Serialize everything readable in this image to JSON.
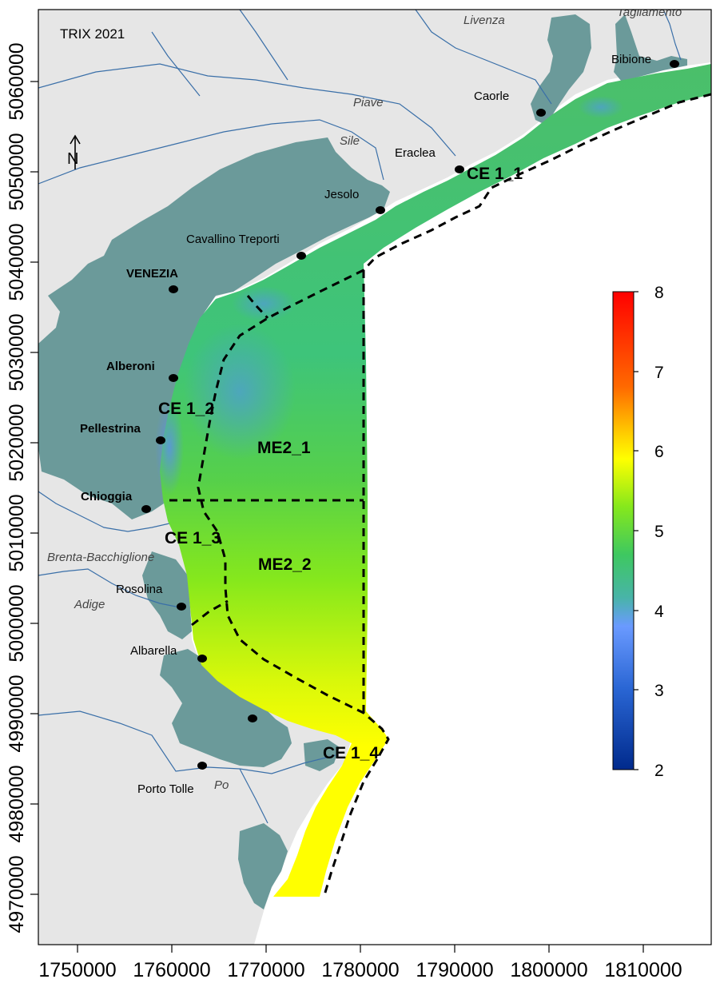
{
  "title": "TRIX 2021",
  "north_label": "N",
  "x_ticks": [
    "1750000",
    "1760000",
    "1770000",
    "1780000",
    "1790000",
    "1800000",
    "1810000"
  ],
  "y_ticks": [
    "5060000",
    "5050000",
    "5040000",
    "5030000",
    "5020000",
    "5010000",
    "5000000",
    "4990000",
    "4980000",
    "4970000"
  ],
  "colorbar": {
    "min": 2,
    "max": 8,
    "ticks": [
      "8",
      "7",
      "6",
      "5",
      "4",
      "3",
      "2"
    ],
    "colors": [
      "#ff0000",
      "#ff6a00",
      "#ffff00",
      "#7fff00",
      "#3ec86e",
      "#5a9cff",
      "#002a8c"
    ]
  },
  "places": {
    "bibione": "Bibione",
    "caorle": "Caorle",
    "eraclea": "Eraclea",
    "jesolo": "Jesolo",
    "cavallino": "Cavallino Treporti",
    "venezia": "VENEZIA",
    "alberoni": "Alberoni",
    "pellestrina": "Pellestrina",
    "chioggia": "Chioggia",
    "rosolina": "Rosolina",
    "albarella": "Albarella",
    "porto_tolle": "Porto Tolle"
  },
  "rivers": {
    "livenza": "Livenza",
    "tagliamento": "Tagliamento",
    "piave": "Piave",
    "sile": "Sile",
    "brenta": "Brenta-Bacchiglione",
    "adige": "Adige",
    "po": "Po"
  },
  "zones": {
    "ce1_1": "CE 1_1",
    "ce1_2": "CE 1_2",
    "ce1_3": "CE 1_3",
    "ce1_4": "CE 1_4",
    "me2_1": "ME2_1",
    "me2_2": "ME2_2"
  },
  "colors": {
    "land": "#e6e6e6",
    "lagoon": "#6b9a9a",
    "river": "#3a6fa8",
    "sea": "#ffffff"
  }
}
